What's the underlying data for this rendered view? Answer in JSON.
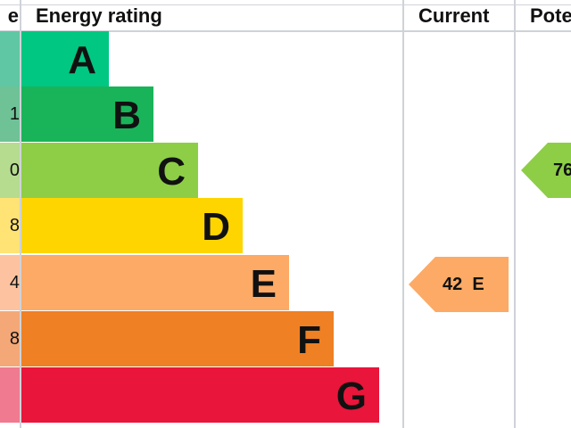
{
  "chart_data": {
    "type": "bar",
    "header": {
      "score": "e",
      "rating": "Energy rating",
      "current": "Current",
      "potential": "Pote"
    },
    "bands": [
      {
        "letter": "A",
        "score": "",
        "color": "#00c781",
        "score_color": "#5fc7a4"
      },
      {
        "letter": "B",
        "score": "1",
        "color": "#19b459",
        "score_color": "#6ec296"
      },
      {
        "letter": "C",
        "score": "0",
        "color": "#8dce46",
        "score_color": "#b6dc8f"
      },
      {
        "letter": "D",
        "score": "8",
        "color": "#ffd500",
        "score_color": "#ffe374"
      },
      {
        "letter": "E",
        "score": "4",
        "color": "#fcaa65",
        "score_color": "#fdc3a0"
      },
      {
        "letter": "F",
        "score": "8",
        "color": "#ef8023",
        "score_color": "#f4a877"
      },
      {
        "letter": "G",
        "score": "",
        "color": "#e9153b",
        "score_color": "#f07a90"
      }
    ],
    "current": {
      "value": 42,
      "band": "E",
      "label": "42  E",
      "color": "#fcaa65"
    },
    "potential": {
      "value": 76,
      "band": "C",
      "label": "76",
      "color": "#8dce46"
    }
  }
}
